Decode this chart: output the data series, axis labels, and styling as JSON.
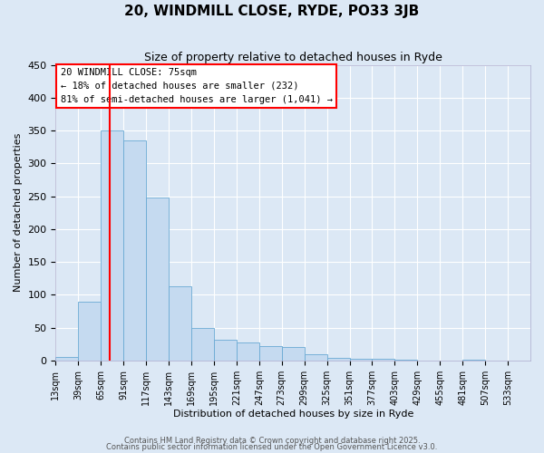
{
  "title": "20, WINDMILL CLOSE, RYDE, PO33 3JB",
  "subtitle": "Size of property relative to detached houses in Ryde",
  "xlabel": "Distribution of detached houses by size in Ryde",
  "ylabel": "Number of detached properties",
  "bin_labels": [
    "13sqm",
    "39sqm",
    "65sqm",
    "91sqm",
    "117sqm",
    "143sqm",
    "169sqm",
    "195sqm",
    "221sqm",
    "247sqm",
    "273sqm",
    "299sqm",
    "325sqm",
    "351sqm",
    "377sqm",
    "403sqm",
    "429sqm",
    "455sqm",
    "481sqm",
    "507sqm",
    "533sqm"
  ],
  "bin_edges": [
    13,
    39,
    65,
    91,
    117,
    143,
    169,
    195,
    221,
    247,
    273,
    299,
    325,
    351,
    377,
    403,
    429,
    455,
    481,
    507,
    533,
    559
  ],
  "bar_values": [
    5,
    90,
    350,
    335,
    248,
    113,
    50,
    32,
    28,
    22,
    20,
    10,
    4,
    2,
    2,
    1,
    0,
    0,
    1,
    0,
    0
  ],
  "bar_color": "#c5daf0",
  "bar_edge_color": "#6aaad4",
  "vline_x": 75,
  "vline_color": "red",
  "annotation_title": "20 WINDMILL CLOSE: 75sqm",
  "annotation_line1": "← 18% of detached houses are smaller (232)",
  "annotation_line2": "81% of semi-detached houses are larger (1,041) →",
  "ylim": [
    0,
    450
  ],
  "yticks": [
    0,
    50,
    100,
    150,
    200,
    250,
    300,
    350,
    400,
    450
  ],
  "footer1": "Contains HM Land Registry data © Crown copyright and database right 2025.",
  "footer2": "Contains public sector information licensed under the Open Government Licence v3.0.",
  "bg_color": "#dce8f5",
  "plot_bg_color": "#dce8f5",
  "grid_color": "#ffffff",
  "title_fontsize": 11,
  "subtitle_fontsize": 9,
  "tick_fontsize": 7,
  "label_fontsize": 8,
  "footer_fontsize": 6
}
